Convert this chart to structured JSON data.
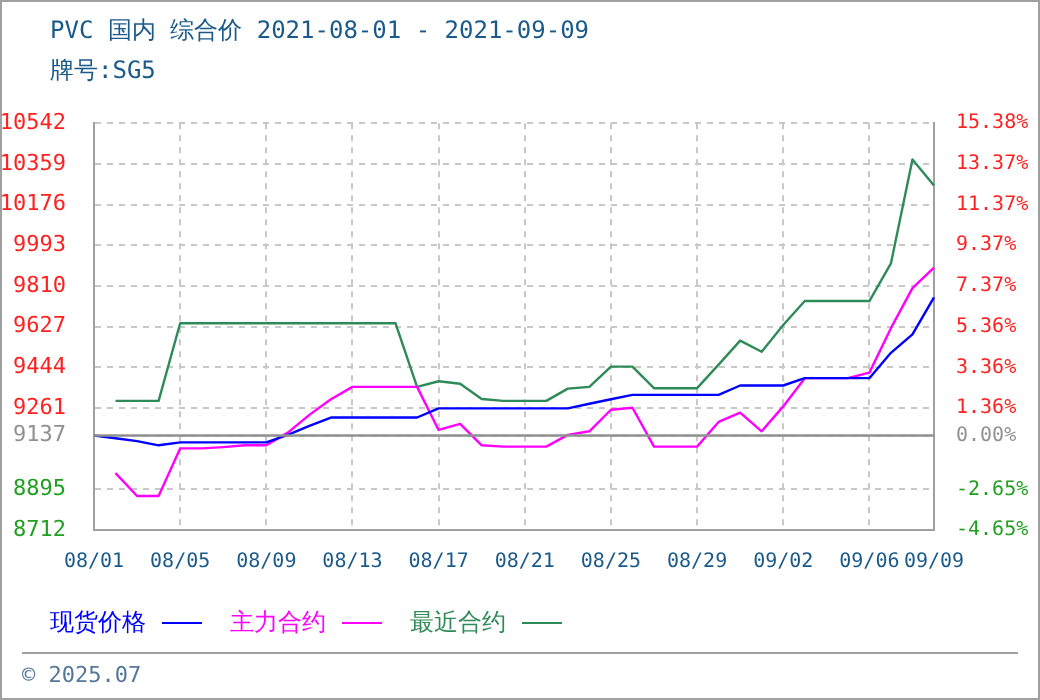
{
  "chart_data": {
    "type": "line",
    "title": "PVC 国内 综合价 2021-08-01 - 2021-09-09",
    "subtitle": "牌号:SG5",
    "categories": [
      "08/01",
      null,
      null,
      null,
      "08/05",
      null,
      null,
      null,
      "08/09",
      null,
      null,
      null,
      "08/13",
      null,
      null,
      null,
      "08/17",
      null,
      null,
      null,
      "08/21",
      null,
      null,
      null,
      "08/25",
      null,
      null,
      null,
      "08/29",
      null,
      null,
      null,
      "09/02",
      null,
      null,
      null,
      "09/06",
      null,
      null,
      "09/09"
    ],
    "series": [
      {
        "name": "现货价格",
        "color": "#0000ff",
        "values": [
          9137,
          9125,
          9112,
          9093,
          9106,
          9106,
          9106,
          9106,
          9106,
          9140,
          9180,
          9218,
          9218,
          9218,
          9218,
          9218,
          9259,
          9259,
          9259,
          9259,
          9259,
          9259,
          9259,
          9280,
          9300,
          9320,
          9320,
          9320,
          9320,
          9320,
          9362,
          9362,
          9362,
          9395,
          9395,
          9395,
          9395,
          9509,
          9592,
          9758
        ]
      },
      {
        "name": "主力合约",
        "color": "#ff00ff",
        "values": [
          null,
          8968,
          8865,
          8865,
          9079,
          9079,
          9085,
          9093,
          9093,
          9150,
          9230,
          9300,
          9356,
          9356,
          9356,
          9356,
          9162,
          9189,
          9093,
          9087,
          9087,
          9087,
          9140,
          9156,
          9253,
          9262,
          9087,
          9087,
          9087,
          9198,
          9240,
          9156,
          9268,
          9395,
          9395,
          9395,
          9420,
          9620,
          9800,
          9892
        ]
      },
      {
        "name": "最近合约",
        "color": "#2e8b57",
        "values": [
          null,
          9293,
          9293,
          9293,
          9642,
          9642,
          9642,
          9642,
          9642,
          9642,
          9642,
          9642,
          9642,
          9642,
          9642,
          9356,
          9381,
          9370,
          9301,
          9293,
          9293,
          9293,
          9348,
          9356,
          9447,
          9447,
          9350,
          9350,
          9350,
          9456,
          9564,
          9514,
          9634,
          9742,
          9742,
          9742,
          9742,
          9911,
          10379,
          10262
        ]
      }
    ],
    "ylim": [
      8712,
      10542
    ],
    "yticks": [
      8712,
      8895,
      9137,
      9261,
      9444,
      9627,
      9810,
      9993,
      10176,
      10359,
      10542
    ],
    "y2lim": [
      -4.65,
      15.38
    ],
    "y2ticks": [
      {
        "value": -4.65,
        "label": "-4.65%"
      },
      {
        "value": -2.65,
        "label": "-2.65%"
      },
      {
        "value": 0,
        "label": "0.00%"
      },
      {
        "value": 1.36,
        "label": "1.36%"
      },
      {
        "value": 3.36,
        "label": "3.36%"
      },
      {
        "value": 5.36,
        "label": "5.36%"
      },
      {
        "value": 7.37,
        "label": "7.37%"
      },
      {
        "value": 9.37,
        "label": "9.37%"
      },
      {
        "value": 11.37,
        "label": "11.37%"
      },
      {
        "value": 13.37,
        "label": "13.37%"
      },
      {
        "value": 15.38,
        "label": "15.38%"
      }
    ],
    "ref_lines": [
      {
        "axis": "y",
        "value": 9137,
        "color": "#909090"
      }
    ],
    "grid": true,
    "legend": "bottom",
    "marker": "none",
    "line_style": "solid",
    "annotations": [
      "© 2025.07"
    ]
  }
}
